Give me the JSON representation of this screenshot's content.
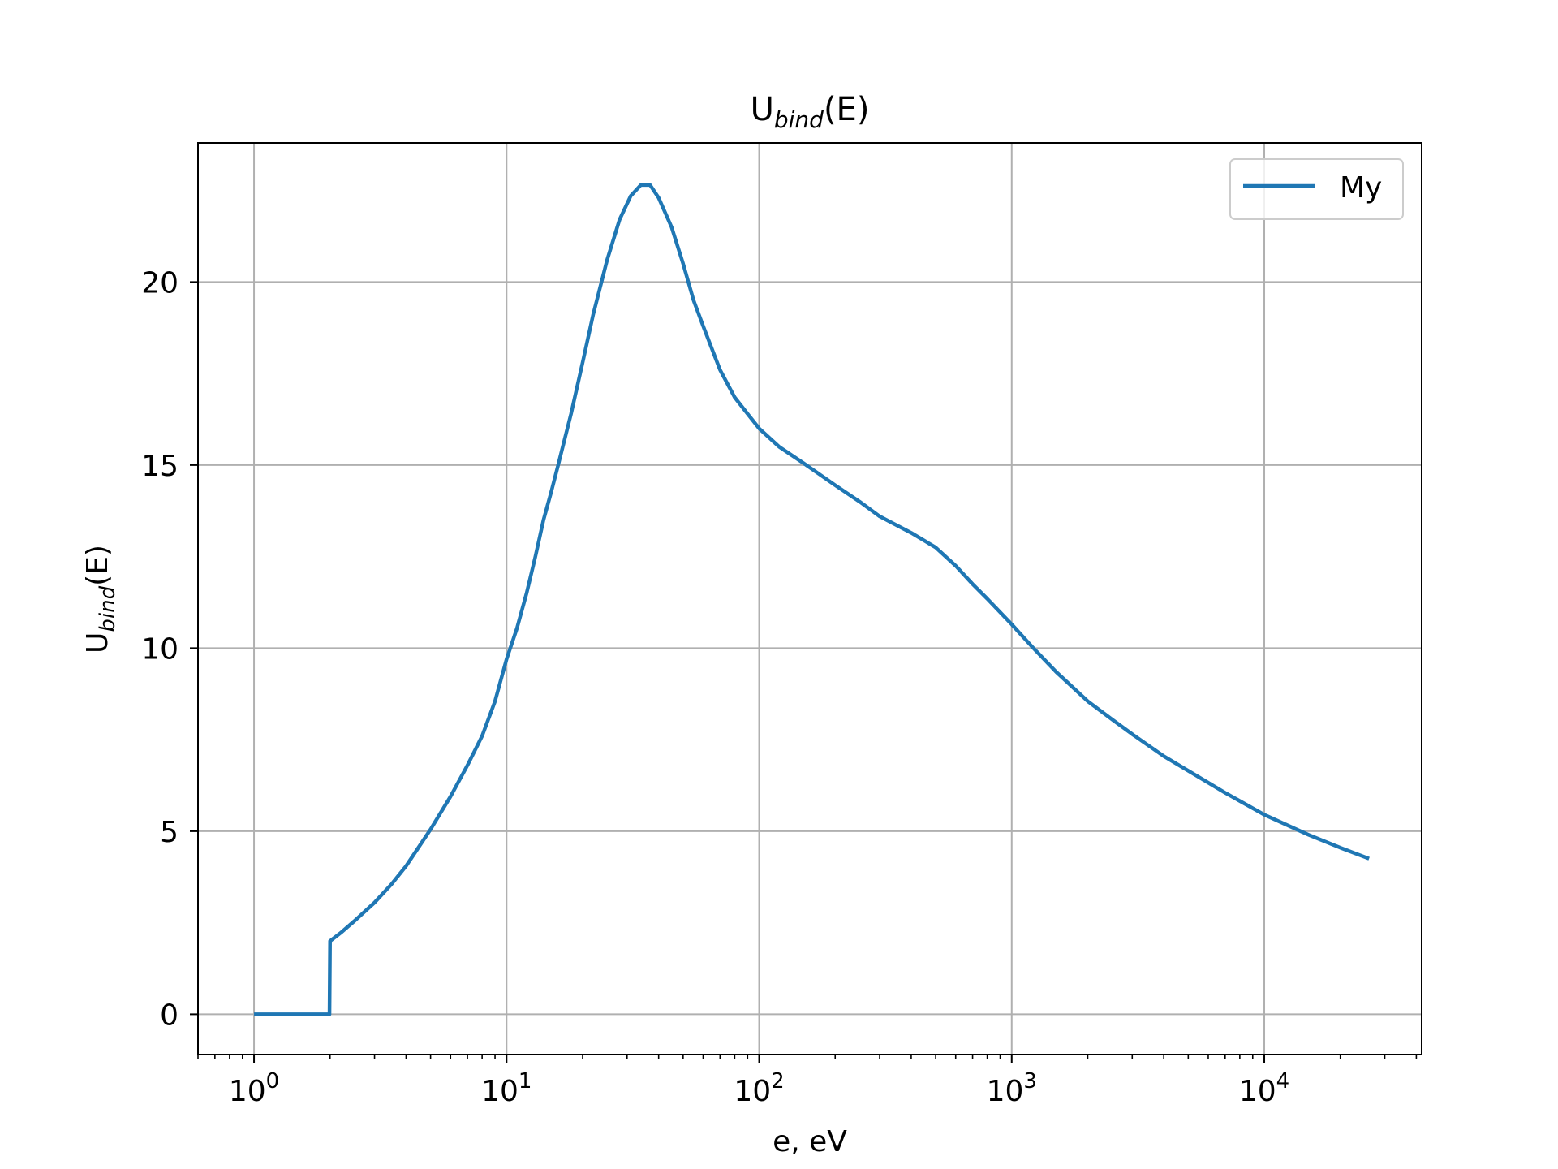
{
  "chart_data": {
    "type": "line",
    "title": {
      "main": "U",
      "sub": "bind",
      "suffix": "(E)"
    },
    "xlabel": "e, eV",
    "ylabel": {
      "main": "U",
      "sub": "bind",
      "suffix": "(E)"
    },
    "xscale": "log",
    "xlim": [
      0.6,
      42000
    ],
    "ylim": [
      -1.1,
      23.8
    ],
    "x_ticks": [
      {
        "value": 1,
        "base": "10",
        "exp": "0"
      },
      {
        "value": 10,
        "base": "10",
        "exp": "1"
      },
      {
        "value": 100,
        "base": "10",
        "exp": "2"
      },
      {
        "value": 1000,
        "base": "10",
        "exp": "3"
      },
      {
        "value": 10000,
        "base": "10",
        "exp": "4"
      }
    ],
    "y_ticks": [
      0,
      5,
      10,
      15,
      20
    ],
    "grid": true,
    "legend": {
      "position": "top-right",
      "entries": [
        "My"
      ]
    },
    "colors": {
      "series": "#1f77b4",
      "grid": "#b0b0b0",
      "axes": "#000000"
    },
    "series": [
      {
        "name": "My",
        "points": [
          [
            1,
            0
          ],
          [
            1.99,
            0
          ],
          [
            2.0,
            2.0
          ],
          [
            2.2,
            2.22
          ],
          [
            2.5,
            2.55
          ],
          [
            3,
            3.05
          ],
          [
            3.5,
            3.55
          ],
          [
            4,
            4.05
          ],
          [
            5,
            5.05
          ],
          [
            6,
            5.95
          ],
          [
            7,
            6.8
          ],
          [
            8,
            7.6
          ],
          [
            9,
            8.55
          ],
          [
            10,
            9.7
          ],
          [
            11,
            10.55
          ],
          [
            12,
            11.5
          ],
          [
            13,
            12.5
          ],
          [
            14,
            13.5
          ],
          [
            15,
            14.25
          ],
          [
            16,
            15.0
          ],
          [
            18,
            16.4
          ],
          [
            20,
            17.8
          ],
          [
            22,
            19.1
          ],
          [
            25,
            20.6
          ],
          [
            28,
            21.7
          ],
          [
            31,
            22.35
          ],
          [
            34,
            22.65
          ],
          [
            37,
            22.65
          ],
          [
            40,
            22.3
          ],
          [
            45,
            21.5
          ],
          [
            50,
            20.5
          ],
          [
            55,
            19.5
          ],
          [
            60,
            18.8
          ],
          [
            70,
            17.6
          ],
          [
            80,
            16.85
          ],
          [
            90,
            16.4
          ],
          [
            100,
            16.0
          ],
          [
            120,
            15.5
          ],
          [
            150,
            15.05
          ],
          [
            200,
            14.45
          ],
          [
            250,
            14.0
          ],
          [
            300,
            13.6
          ],
          [
            400,
            13.15
          ],
          [
            500,
            12.75
          ],
          [
            600,
            12.25
          ],
          [
            700,
            11.75
          ],
          [
            800,
            11.35
          ],
          [
            1000,
            10.65
          ],
          [
            1200,
            10.05
          ],
          [
            1500,
            9.35
          ],
          [
            2000,
            8.55
          ],
          [
            2500,
            8.05
          ],
          [
            3000,
            7.65
          ],
          [
            4000,
            7.05
          ],
          [
            5000,
            6.65
          ],
          [
            7000,
            6.05
          ],
          [
            10000,
            5.45
          ],
          [
            15000,
            4.9
          ],
          [
            20000,
            4.55
          ],
          [
            26000,
            4.25
          ]
        ]
      }
    ]
  }
}
